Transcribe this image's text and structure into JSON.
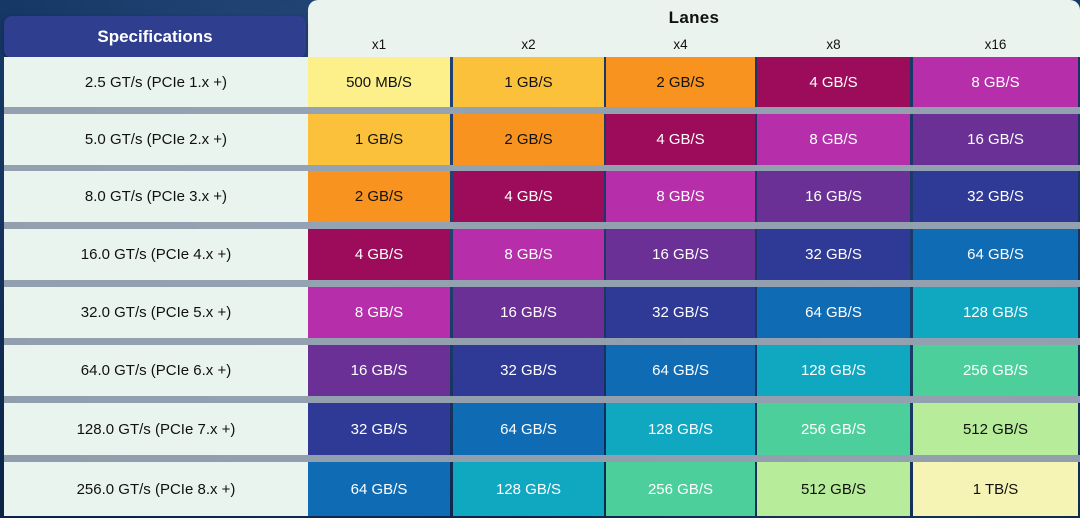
{
  "header": {
    "specifications_label": "Specifications",
    "lanes_label": "Lanes"
  },
  "lanes": [
    "x1",
    "x2",
    "x4",
    "x8",
    "x16"
  ],
  "rows": [
    {
      "spec": "2.5 GT/s (PCIe 1.x +)",
      "cells": [
        "500 MB/S",
        "1 GB/S",
        "2 GB/S",
        "4 GB/S",
        "8 GB/S"
      ]
    },
    {
      "spec": "5.0 GT/s (PCIe 2.x +)",
      "cells": [
        "1 GB/S",
        "2 GB/S",
        "4 GB/S",
        "8 GB/S",
        "16 GB/S"
      ]
    },
    {
      "spec": "8.0 GT/s (PCIe 3.x +)",
      "cells": [
        "2 GB/S",
        "4 GB/S",
        "8 GB/S",
        "16 GB/S",
        "32 GB/S"
      ]
    },
    {
      "spec": "16.0 GT/s (PCIe 4.x +)",
      "cells": [
        "4 GB/S",
        "8 GB/S",
        "16 GB/S",
        "32 GB/S",
        "64 GB/S"
      ]
    },
    {
      "spec": "32.0 GT/s (PCIe 5.x +)",
      "cells": [
        "8 GB/S",
        "16 GB/S",
        "32 GB/S",
        "64 GB/S",
        "128 GB/S"
      ]
    },
    {
      "spec": "64.0 GT/s (PCIe 6.x +)",
      "cells": [
        "16 GB/S",
        "32 GB/S",
        "64 GB/S",
        "128 GB/S",
        "256 GB/S"
      ]
    },
    {
      "spec": "128.0 GT/s (PCIe 7.x +)",
      "cells": [
        "32 GB/S",
        "64 GB/S",
        "128 GB/S",
        "256 GB/S",
        "512 GB/S"
      ]
    },
    {
      "spec": "256.0 GT/s (PCIe 8.x +)",
      "cells": [
        "64 GB/S",
        "128 GB/S",
        "256 GB/S",
        "512 GB/S",
        "1 TB/S"
      ]
    }
  ],
  "bandwidth_colors": {
    "500 MB/S": "#fdf08a",
    "1 GB/S": "#fcc13a",
    "2 GB/S": "#f7931e",
    "4 GB/S": "#9c0c5a",
    "8 GB/S": "#b62eaa",
    "16 GB/S": "#6a3096",
    "32 GB/S": "#2e3a96",
    "64 GB/S": "#0e6bb4",
    "128 GB/S": "#10a7c0",
    "256 GB/S": "#4ccf9a",
    "512 GB/S": "#b6ec9a",
    "1 TB/S": "#f6f4b4"
  },
  "dark_text_values": [
    "500 MB/S",
    "1 GB/S",
    "2 GB/S",
    "512 GB/S",
    "1 TB/S"
  ]
}
